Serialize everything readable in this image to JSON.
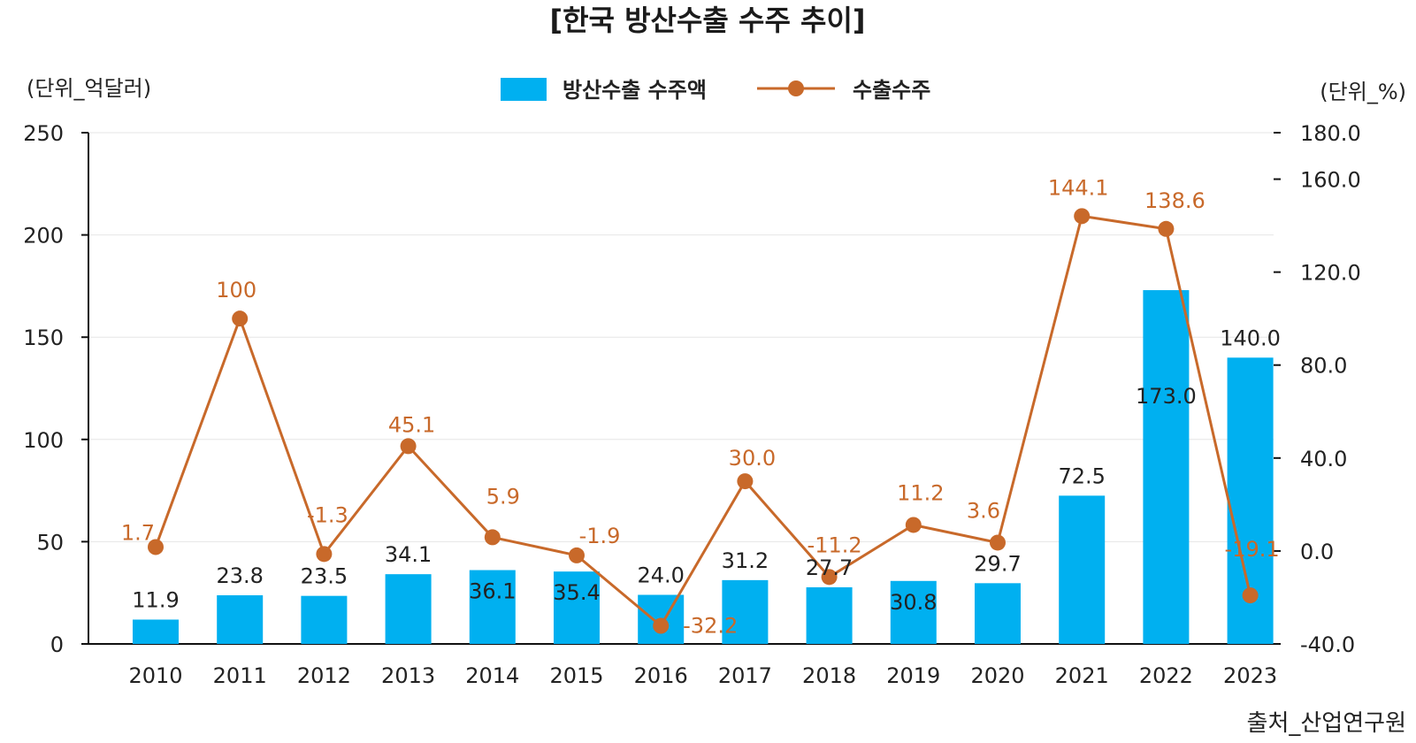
{
  "chart_data": {
    "type": "bar+line",
    "title": "[한국 방산수출 수주 추이]",
    "left_axis_unit": "(단위_억달러)",
    "right_axis_unit": "(단위_%)",
    "source": "출처_산업연구원",
    "categories": [
      "2010",
      "2011",
      "2012",
      "2013",
      "2014",
      "2015",
      "2016",
      "2017",
      "2018",
      "2019",
      "2020",
      "2021",
      "2022",
      "2023"
    ],
    "series": [
      {
        "name": "방산수출 수주액",
        "kind": "bar",
        "axis": "left",
        "color": "#00b0f0",
        "values": [
          11.9,
          23.8,
          23.5,
          34.1,
          36.1,
          35.4,
          24.0,
          31.2,
          27.7,
          30.8,
          29.7,
          72.5,
          173.0,
          140.0
        ],
        "labels": [
          "11.9",
          "23.8",
          "23.5",
          "34.1",
          "36.1",
          "35.4",
          "24.0",
          "31.2",
          "27.7",
          "30.8",
          "29.7",
          "72.5",
          "173.0",
          "140.0"
        ]
      },
      {
        "name": "수출수주",
        "kind": "line",
        "axis": "right",
        "color": "#c8692a",
        "values": [
          1.7,
          100,
          -1.3,
          45.1,
          5.9,
          -1.9,
          -32.2,
          30.0,
          -11.2,
          11.2,
          3.6,
          144.1,
          138.6,
          -19.1
        ],
        "labels": [
          "1.7",
          "100",
          "-1.3",
          "45.1",
          "5.9",
          "-1.9",
          "-32.2",
          "30.0",
          "-11.2",
          "11.2",
          "3.6",
          "144.1",
          "138.6",
          "-19.1"
        ]
      }
    ],
    "left_axis": {
      "min": 0,
      "max": 250,
      "ticks": [
        "0",
        "50",
        "100",
        "150",
        "200",
        "250"
      ]
    },
    "right_axis": {
      "min": -40,
      "max": 180,
      "ticks": [
        "-40.0",
        "0.0",
        "40.0",
        "80.0",
        "120.0",
        "160.0",
        "180.0"
      ]
    },
    "grid": true,
    "legend_position": "top-center"
  }
}
